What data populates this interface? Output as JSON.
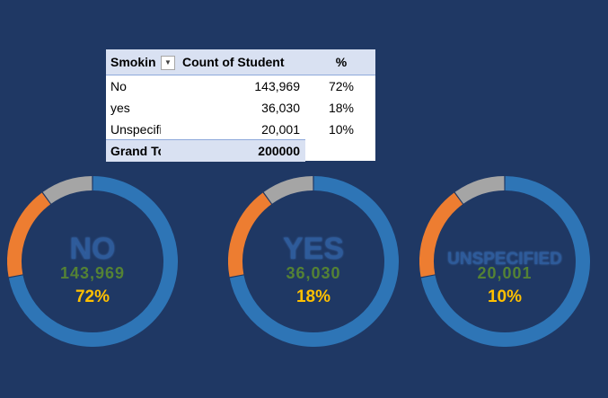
{
  "pivot": {
    "header": {
      "col1": "Smokin",
      "col2": "Count of Student",
      "col3": "%"
    },
    "filter_icon": "dropdown-arrow",
    "rows": [
      {
        "label": "No",
        "count": "143,969",
        "pct": "72%"
      },
      {
        "label": "yes",
        "count": "36,030",
        "pct": "18%"
      },
      {
        "label": "Unspecifie",
        "count": "20,001",
        "pct": "10%"
      }
    ],
    "total": {
      "label": "Grand Tot",
      "count": "200000"
    }
  },
  "chart_data": [
    {
      "type": "pie",
      "donut": true,
      "categories": [
        "No",
        "yes",
        "Unspecified"
      ],
      "values": [
        143969,
        36030,
        20001
      ],
      "center_label": "NO",
      "center_count": "143,969",
      "center_pct": "72%"
    },
    {
      "type": "pie",
      "donut": true,
      "categories": [
        "No",
        "yes",
        "Unspecified"
      ],
      "values": [
        143969,
        36030,
        20001
      ],
      "center_label": "YES",
      "center_count": "36,030",
      "center_pct": "18%"
    },
    {
      "type": "pie",
      "donut": true,
      "categories": [
        "No",
        "yes",
        "Unspecified"
      ],
      "values": [
        143969,
        36030,
        20001
      ],
      "center_label": "UNSPECIFIED",
      "center_count": "20,001",
      "center_pct": "10%"
    }
  ],
  "colors": {
    "background": "#1f3864",
    "no": "#2e75b6",
    "yes": "#ed7d31",
    "unspecified": "#a5a5a5",
    "count_text": "#548235",
    "pct_text": "#ffc000"
  }
}
